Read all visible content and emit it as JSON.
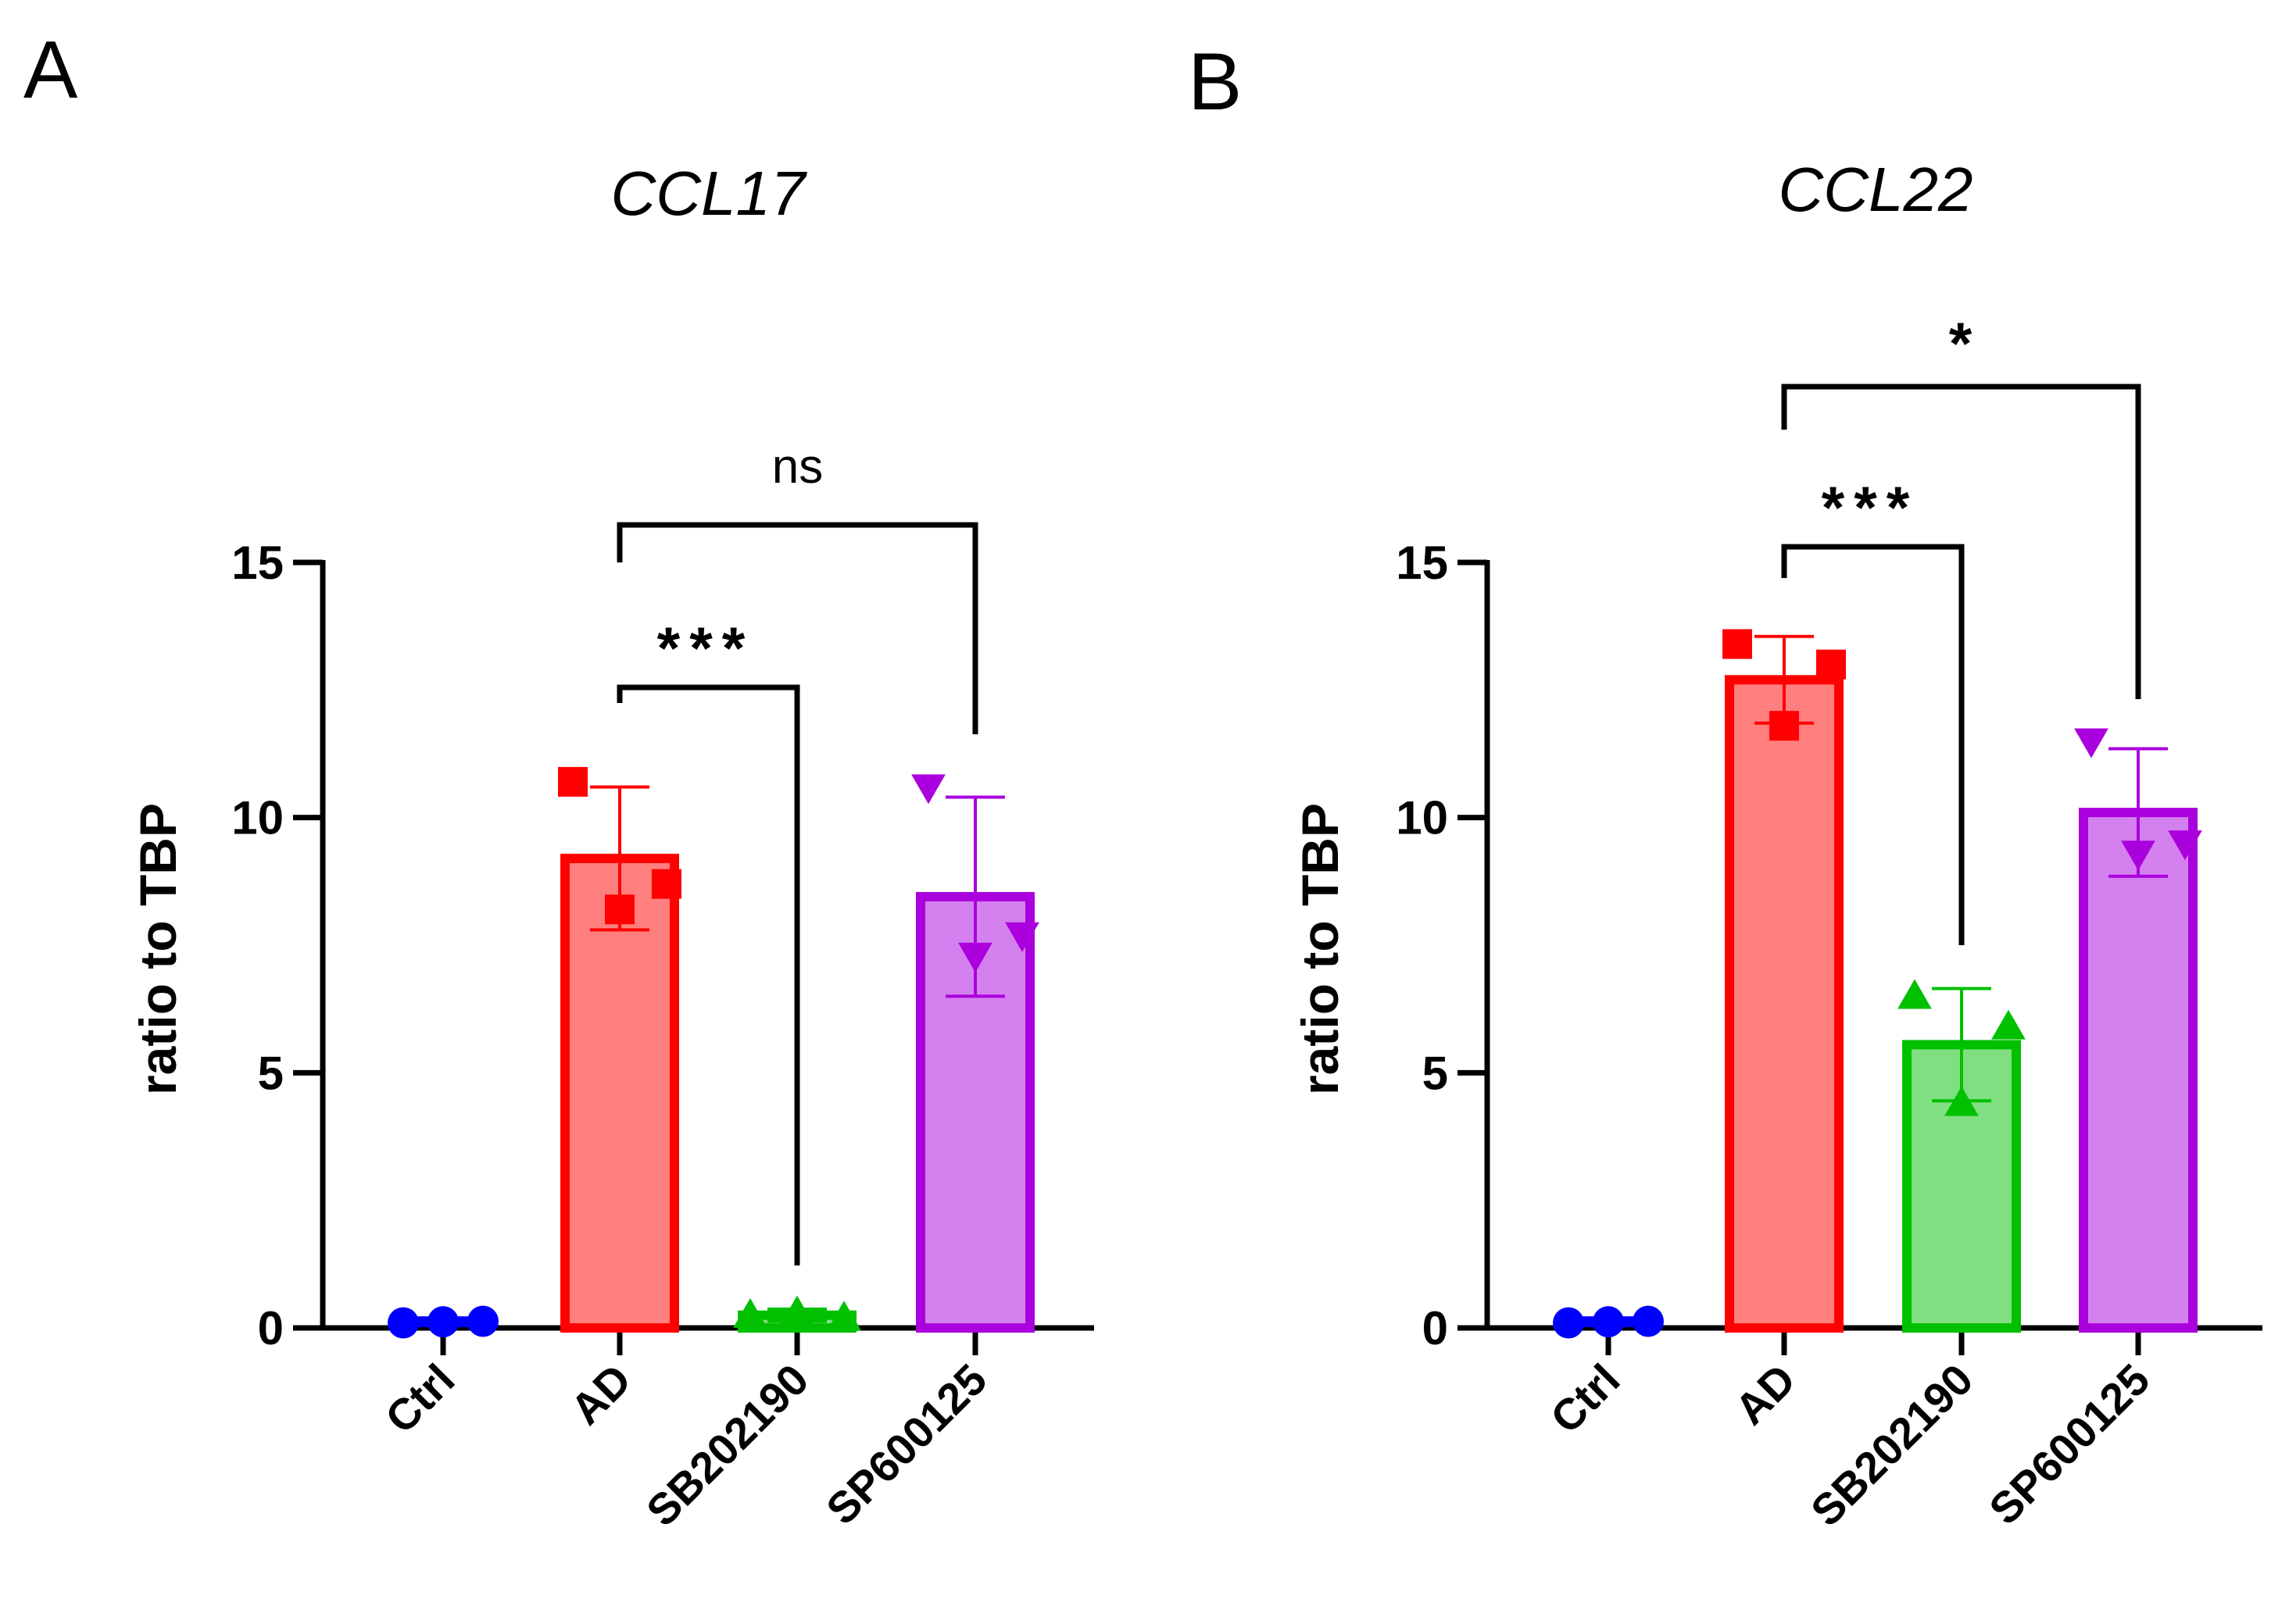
{
  "chart_data": [
    {
      "panel": "A",
      "type": "bar",
      "title": "CCL17",
      "ylabel": "ratio to TBP",
      "ylim": [
        0,
        15
      ],
      "yticks": [
        "0",
        "5",
        "10",
        "15"
      ],
      "categories": [
        "Ctrl",
        "AD",
        "SB202190",
        "SP600125"
      ],
      "values": [
        0.12,
        9.2,
        0.25,
        8.45
      ],
      "error": [
        0.08,
        1.4,
        0.12,
        1.95
      ],
      "points": [
        [
          0.1,
          0.12,
          0.13
        ],
        [
          10.7,
          8.2,
          8.7
        ],
        [
          0.25,
          0.3,
          0.2
        ],
        [
          10.6,
          7.3,
          7.7
        ]
      ],
      "markers": [
        "circle",
        "square",
        "triangle-up",
        "triangle-down"
      ],
      "colors": {
        "fill": [
          "#2a2af0",
          "#ff7f7f",
          "#80df80",
          "#d580ef"
        ],
        "stroke": [
          "#0000ff",
          "#ff0000",
          "#00c000",
          "#aa00dd"
        ]
      },
      "comparisons": [
        {
          "from": "AD",
          "to": "SB202190",
          "label": "***"
        },
        {
          "from": "AD",
          "to": "SP600125",
          "label": "ns"
        }
      ]
    },
    {
      "panel": "B",
      "type": "bar",
      "title": "CCL22",
      "ylabel": "ratio to TBP",
      "ylim": [
        0,
        15
      ],
      "yticks": [
        "0",
        "5",
        "10",
        "15"
      ],
      "categories": [
        "Ctrl",
        "AD",
        "SB202190",
        "SP600125"
      ],
      "values": [
        0.12,
        12.7,
        5.55,
        10.1
      ],
      "error": [
        0.08,
        0.85,
        1.1,
        1.25
      ],
      "points": [
        [
          0.1,
          0.12,
          0.13
        ],
        [
          13.4,
          11.8,
          13.0
        ],
        [
          6.5,
          4.4,
          5.9
        ],
        [
          11.5,
          9.3,
          9.5
        ]
      ],
      "markers": [
        "circle",
        "square",
        "triangle-up",
        "triangle-down"
      ],
      "colors": {
        "fill": [
          "#2a2af0",
          "#ff7f7f",
          "#80df80",
          "#d580ef"
        ],
        "stroke": [
          "#0000ff",
          "#ff0000",
          "#00c000",
          "#aa00dd"
        ]
      },
      "comparisons": [
        {
          "from": "AD",
          "to": "SB202190",
          "label": "***"
        },
        {
          "from": "AD",
          "to": "SP600125",
          "label": "*"
        }
      ]
    }
  ]
}
